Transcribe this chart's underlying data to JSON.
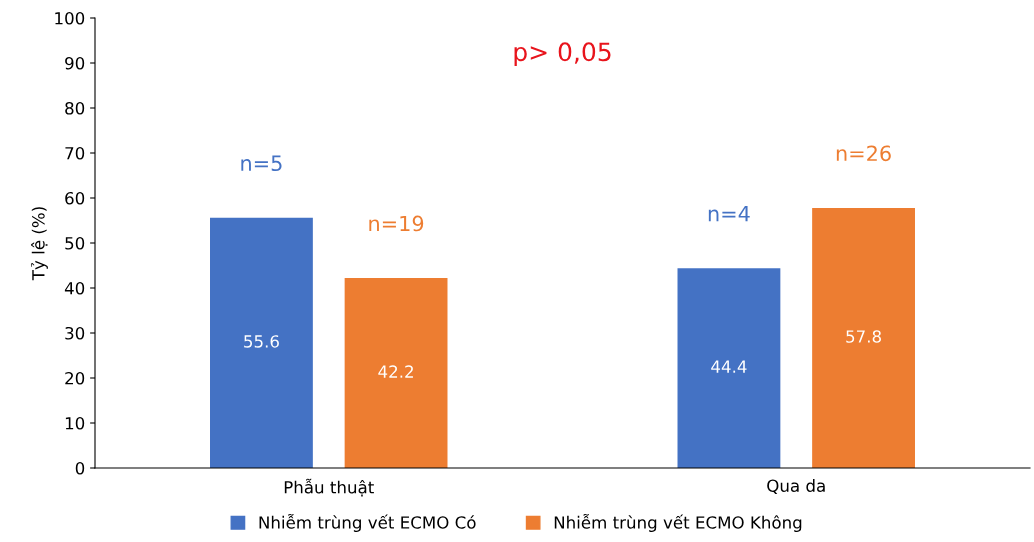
{
  "chart_data": {
    "type": "bar",
    "ylabel": "Tỷ lệ (%)",
    "categories": [
      "Phẫu thuật",
      "Qua da"
    ],
    "series": [
      {
        "name": "Nhiễm trùng vết ECMO Có",
        "color": "#4472c4",
        "values": [
          55.6,
          44.4
        ]
      },
      {
        "name": "Nhiễm trùng vết ECMO Không",
        "color": "#ed7d31",
        "values": [
          42.2,
          57.8
        ]
      }
    ],
    "ylim": [
      0,
      100
    ],
    "yticks": [
      0,
      10,
      20,
      30,
      40,
      50,
      60,
      70,
      80,
      90,
      100
    ],
    "data_labels": true,
    "legend": "bottom",
    "grid": false,
    "annotations": [
      "p> 0,05",
      "n=5",
      "n=19",
      "n=4",
      "n=26"
    ]
  }
}
